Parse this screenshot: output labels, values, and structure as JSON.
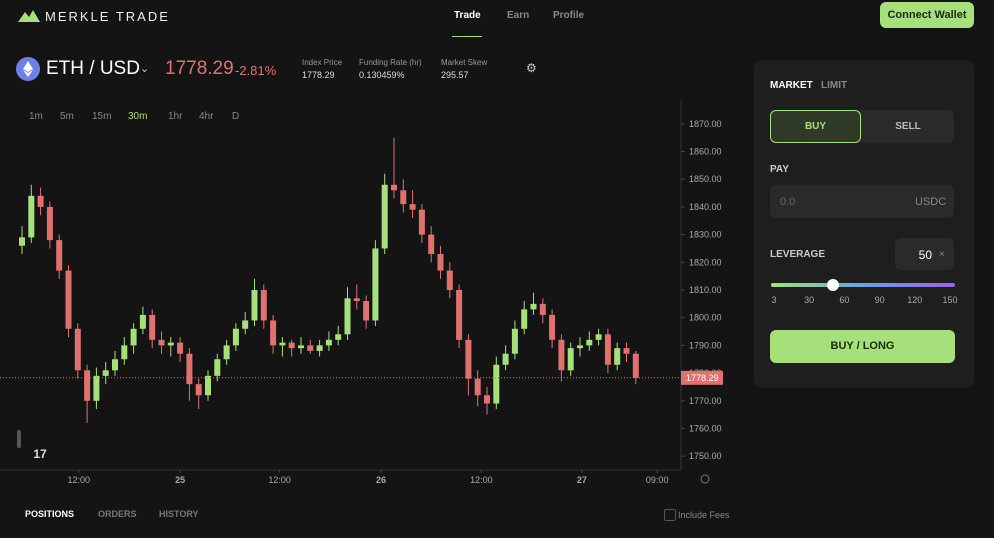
{
  "header": {
    "logo": "MERKLE TRADE",
    "nav": [
      "Trade",
      "Earn",
      "Profile"
    ],
    "nav_active": 0,
    "connect": "Connect Wallet"
  },
  "ticker": {
    "pair": "ETH / USD",
    "price": "1778.29",
    "change": "-2.81%",
    "stats": [
      {
        "label": "Index Price",
        "value": "1778.29"
      },
      {
        "label": "Funding Rate (hr)",
        "value": "0.130459%"
      },
      {
        "label": "Market Skew",
        "value": "295.57"
      }
    ]
  },
  "timeframes": {
    "items": [
      "1m",
      "5m",
      "15m",
      "30m",
      "1hr",
      "4hr",
      "D"
    ],
    "active": 3
  },
  "chart_data": {
    "type": "candlestick",
    "up_color": "#a6e07a",
    "down_color": "#e0716f",
    "candles": [
      [
        1826,
        1833,
        1823,
        1829
      ],
      [
        1829,
        1848,
        1827,
        1844
      ],
      [
        1844,
        1847,
        1837,
        1840
      ],
      [
        1840,
        1842,
        1825,
        1828
      ],
      [
        1828,
        1830,
        1814,
        1817
      ],
      [
        1817,
        1819,
        1793,
        1796
      ],
      [
        1796,
        1798,
        1778,
        1781
      ],
      [
        1781,
        1783,
        1762,
        1770
      ],
      [
        1770,
        1782,
        1767,
        1779
      ],
      [
        1779,
        1784,
        1776,
        1781
      ],
      [
        1781,
        1788,
        1779,
        1785
      ],
      [
        1785,
        1793,
        1783,
        1790
      ],
      [
        1790,
        1798,
        1787,
        1796
      ],
      [
        1796,
        1804,
        1794,
        1801
      ],
      [
        1801,
        1803,
        1789,
        1792
      ],
      [
        1792,
        1795,
        1787,
        1790
      ],
      [
        1790,
        1793,
        1786,
        1791
      ],
      [
        1791,
        1793,
        1784,
        1787
      ],
      [
        1787,
        1789,
        1770,
        1776
      ],
      [
        1776,
        1778,
        1767,
        1772
      ],
      [
        1772,
        1781,
        1770,
        1779
      ],
      [
        1779,
        1787,
        1777,
        1785
      ],
      [
        1785,
        1792,
        1783,
        1790
      ],
      [
        1790,
        1798,
        1788,
        1796
      ],
      [
        1796,
        1802,
        1794,
        1799
      ],
      [
        1799,
        1814,
        1797,
        1810
      ],
      [
        1810,
        1812,
        1796,
        1799
      ],
      [
        1799,
        1801,
        1787,
        1790
      ],
      [
        1790,
        1793,
        1786,
        1791
      ],
      [
        1791,
        1792,
        1786,
        1789
      ],
      [
        1789,
        1793,
        1787,
        1790
      ],
      [
        1790,
        1792,
        1787,
        1788
      ],
      [
        1788,
        1792,
        1786,
        1790
      ],
      [
        1790,
        1795,
        1788,
        1792
      ],
      [
        1792,
        1797,
        1790,
        1794
      ],
      [
        1794,
        1811,
        1792,
        1807
      ],
      [
        1807,
        1812,
        1803,
        1806
      ],
      [
        1806,
        1808,
        1796,
        1799
      ],
      [
        1799,
        1828,
        1797,
        1825
      ],
      [
        1825,
        1852,
        1823,
        1848
      ],
      [
        1848,
        1865,
        1843,
        1846
      ],
      [
        1846,
        1850,
        1838,
        1841
      ],
      [
        1841,
        1846,
        1836,
        1839
      ],
      [
        1839,
        1841,
        1827,
        1830
      ],
      [
        1830,
        1833,
        1820,
        1823
      ],
      [
        1823,
        1826,
        1814,
        1817
      ],
      [
        1817,
        1820,
        1807,
        1810
      ],
      [
        1810,
        1812,
        1789,
        1792
      ],
      [
        1792,
        1794,
        1772,
        1778
      ],
      [
        1778,
        1781,
        1768,
        1772
      ],
      [
        1772,
        1775,
        1765,
        1769
      ],
      [
        1769,
        1786,
        1767,
        1783
      ],
      [
        1783,
        1790,
        1781,
        1787
      ],
      [
        1787,
        1799,
        1785,
        1796
      ],
      [
        1796,
        1806,
        1794,
        1803
      ],
      [
        1803,
        1809,
        1801,
        1805
      ],
      [
        1805,
        1807,
        1798,
        1801
      ],
      [
        1801,
        1803,
        1789,
        1792
      ],
      [
        1792,
        1794,
        1777,
        1781
      ],
      [
        1781,
        1791,
        1779,
        1789
      ],
      [
        1789,
        1793,
        1786,
        1790
      ],
      [
        1790,
        1795,
        1788,
        1792
      ],
      [
        1792,
        1796,
        1790,
        1794
      ],
      [
        1794,
        1796,
        1780,
        1783
      ],
      [
        1783,
        1791,
        1781,
        1789
      ],
      [
        1789,
        1791,
        1784,
        1787
      ],
      [
        1787,
        1788,
        1776,
        1778.29
      ]
    ],
    "last_price": {
      "value": 1778.29,
      "label": "1778.29"
    },
    "ylim": [
      1745,
      1875
    ],
    "yticks": [
      {
        "value": 1750,
        "label": "1750.00"
      },
      {
        "value": 1760,
        "label": "1760.00"
      },
      {
        "value": 1770,
        "label": "1770.00"
      },
      {
        "value": 1780,
        "label": "1780.00"
      },
      {
        "value": 1790,
        "label": "1790.00"
      },
      {
        "value": 1800,
        "label": "1800.00"
      },
      {
        "value": 1810,
        "label": "1810.00"
      },
      {
        "value": 1820,
        "label": "1820.00"
      },
      {
        "value": 1830,
        "label": "1830.00"
      },
      {
        "value": 1840,
        "label": "1840.00"
      },
      {
        "value": 1850,
        "label": "1850.00"
      },
      {
        "value": 1860,
        "label": "1860.00"
      },
      {
        "value": 1870,
        "label": "1870.00"
      }
    ],
    "xticks": [
      {
        "value": 6.1,
        "label": "12:00"
      },
      {
        "value": 17,
        "label": "25"
      },
      {
        "value": 27.7,
        "label": "12:00"
      },
      {
        "value": 38.6,
        "label": "26"
      },
      {
        "value": 49.4,
        "label": "12:00"
      },
      {
        "value": 60.2,
        "label": "27"
      },
      {
        "value": 68.3,
        "label": "09:00"
      }
    ]
  },
  "bottom_tabs": [
    "POSITIONS",
    "ORDERS",
    "HISTORY"
  ],
  "include_fees": "Include Fees",
  "order_panel": {
    "order_types": [
      "MARKET",
      "LIMIT"
    ],
    "sides": [
      "BUY",
      "SELL"
    ],
    "pay_label": "PAY",
    "pay_placeholder": "0.0",
    "pay_currency": "USDC",
    "leverage_label": "LEVERAGE",
    "leverage": 50,
    "leverage_unit": "×",
    "leverage_marks": [
      3,
      30,
      60,
      90,
      120,
      150
    ],
    "submit": "BUY / LONG"
  }
}
